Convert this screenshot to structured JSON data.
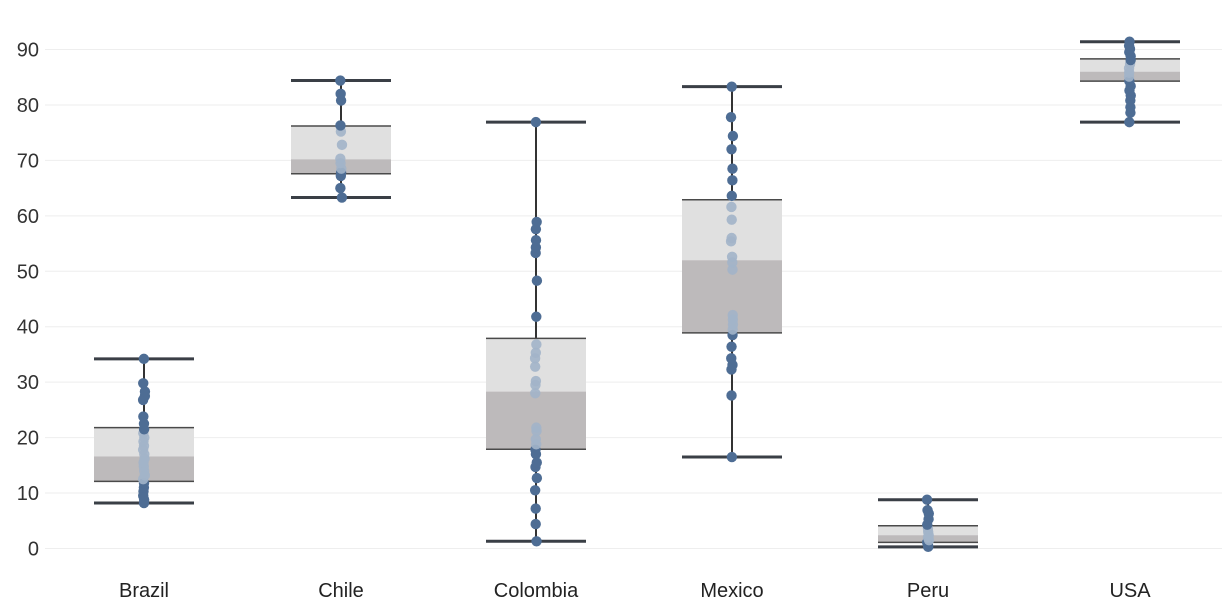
{
  "chart_data": {
    "type": "boxplot",
    "title": "",
    "xlabel": "",
    "ylabel": "",
    "ylim": [
      -4,
      96
    ],
    "yticks": [
      0,
      10,
      20,
      30,
      40,
      50,
      60,
      70,
      80,
      90
    ],
    "grid": true,
    "legend": "none",
    "colors": {
      "point_dark": "#4e6d94",
      "point_light": "#a2b4c9",
      "upper_box": "#e0e0e0",
      "lower_box": "#bdbabb",
      "whisker": "#333333"
    },
    "categories": [
      "Brazil",
      "Chile",
      "Colombia",
      "Mexico",
      "Peru",
      "USA"
    ],
    "boxes": [
      {
        "category": "Brazil",
        "min": 8.2,
        "q1": 12.1,
        "median": 16.6,
        "q3": 21.8,
        "max": 34.2,
        "points": [
          8.2,
          8.8,
          9.5,
          10.3,
          11.0,
          11.8,
          12.5,
          13.2,
          14.0,
          14.8,
          15.5,
          16.2,
          17.0,
          17.8,
          18.5,
          19.3,
          20.0,
          20.8,
          21.5,
          22.5,
          23.8,
          26.8,
          27.5,
          28.3,
          29.8,
          34.2
        ]
      },
      {
        "category": "Chile",
        "min": 63.3,
        "q1": 67.6,
        "median": 70.2,
        "q3": 76.2,
        "max": 84.4,
        "points": [
          63.3,
          65.0,
          67.2,
          67.8,
          68.5,
          69.5,
          70.3,
          72.8,
          75.2,
          76.3,
          80.8,
          82.0,
          84.4
        ]
      },
      {
        "category": "Colombia",
        "min": 1.3,
        "q1": 17.9,
        "median": 28.3,
        "q3": 37.9,
        "max": 76.9,
        "points": [
          1.3,
          4.4,
          7.2,
          10.5,
          12.7,
          14.7,
          15.5,
          17.0,
          17.8,
          18.8,
          19.7,
          21.2,
          21.8,
          28.0,
          29.5,
          30.2,
          32.8,
          34.3,
          35.3,
          36.8,
          41.8,
          48.3,
          53.3,
          54.3,
          55.6,
          57.6,
          58.9,
          76.9
        ]
      },
      {
        "category": "Mexico",
        "min": 16.5,
        "q1": 38.9,
        "median": 52.0,
        "q3": 62.9,
        "max": 83.3,
        "points": [
          16.5,
          27.6,
          32.3,
          33.1,
          34.3,
          36.4,
          38.5,
          39.5,
          40.4,
          41.3,
          42.1,
          50.3,
          51.6,
          52.6,
          55.4,
          56.0,
          59.3,
          61.6,
          63.6,
          66.4,
          68.5,
          72.0,
          74.4,
          77.8,
          83.3
        ]
      },
      {
        "category": "Peru",
        "min": 0.3,
        "q1": 1.1,
        "median": 2.4,
        "q3": 4.1,
        "max": 8.8,
        "points": [
          0.3,
          0.7,
          1.1,
          1.5,
          2.0,
          2.4,
          3.0,
          3.6,
          4.3,
          5.3,
          6.3,
          6.9,
          8.8
        ]
      },
      {
        "category": "USA",
        "min": 76.9,
        "q1": 84.3,
        "median": 86.0,
        "q3": 88.3,
        "max": 91.4,
        "points": [
          76.9,
          78.6,
          79.6,
          80.8,
          81.7,
          82.6,
          83.4,
          84.3,
          85.1,
          85.8,
          86.6,
          87.4,
          88.1,
          88.8,
          89.5,
          90.1,
          90.7,
          91.4
        ]
      }
    ]
  }
}
